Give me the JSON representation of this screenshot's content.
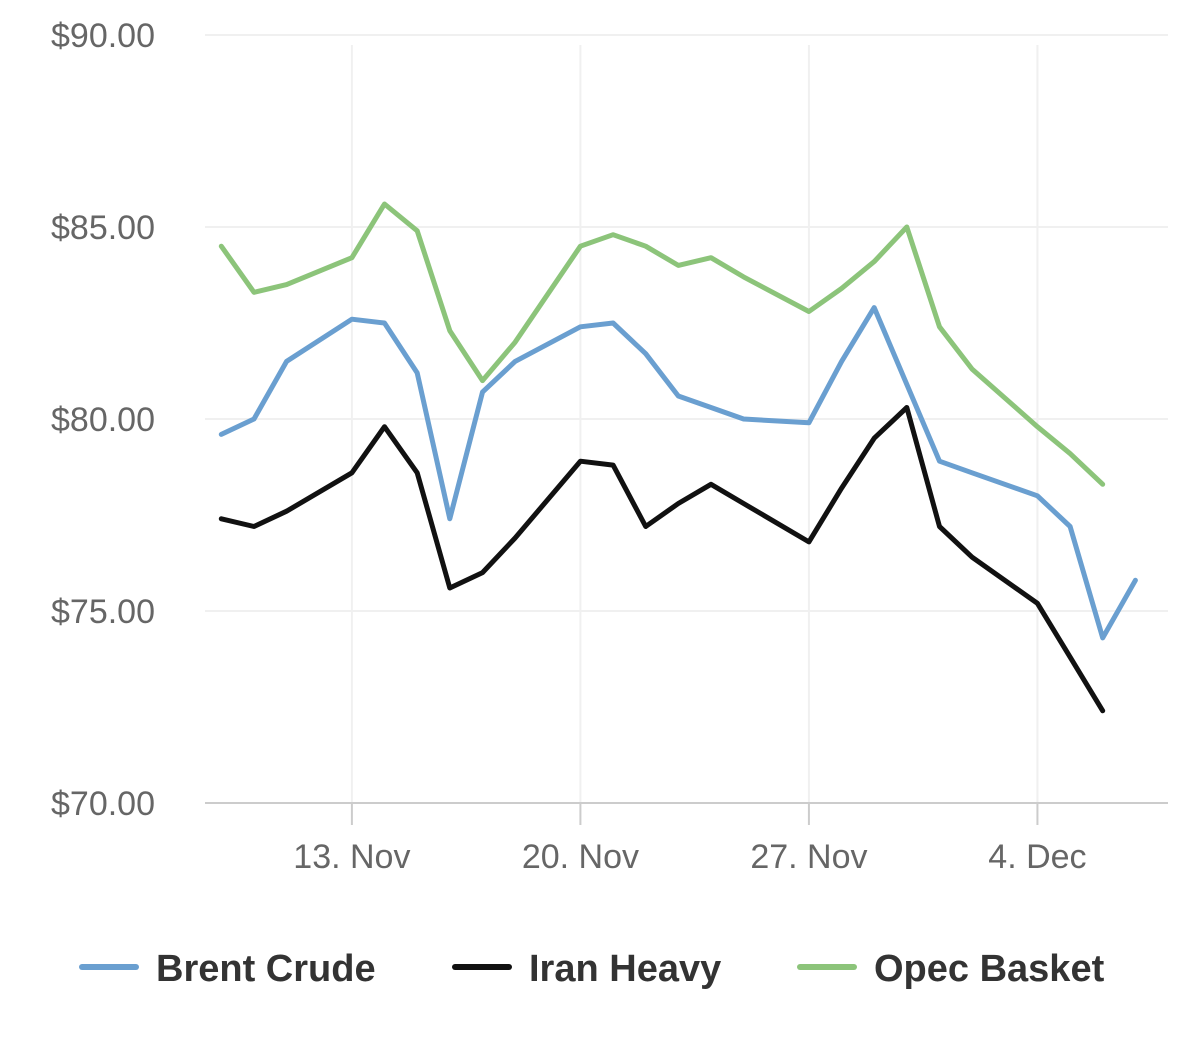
{
  "chart_data": {
    "type": "line",
    "x_type": "date",
    "x": [
      "2017-11-09",
      "2017-11-10",
      "2017-11-11",
      "2017-11-13",
      "2017-11-14",
      "2017-11-15",
      "2017-11-16",
      "2017-11-17",
      "2017-11-18",
      "2017-11-20",
      "2017-11-21",
      "2017-11-22",
      "2017-11-23",
      "2017-11-24",
      "2017-11-25",
      "2017-11-27",
      "2017-11-28",
      "2017-11-29",
      "2017-11-30",
      "2017-12-01",
      "2017-12-02",
      "2017-12-04",
      "2017-12-05",
      "2017-12-06",
      "2017-12-07"
    ],
    "x_ticks": [
      "2017-11-13",
      "2017-11-20",
      "2017-11-27",
      "2017-12-04"
    ],
    "x_tick_labels": [
      "13. Nov",
      "20. Nov",
      "27. Nov",
      "4. Dec"
    ],
    "ylim": [
      70,
      90
    ],
    "y_ticks": [
      70,
      75,
      80,
      85,
      90
    ],
    "y_tick_labels": [
      "$70.00",
      "$75.00",
      "$80.00",
      "$85.00",
      "$90.00"
    ],
    "grid": true,
    "legend_position": "bottom",
    "series": [
      {
        "name": "Brent Crude",
        "color": "#6a9fd0",
        "values": [
          79.6,
          80.0,
          81.5,
          82.6,
          82.5,
          81.2,
          77.4,
          80.7,
          81.5,
          82.4,
          82.5,
          81.7,
          80.6,
          80.3,
          80.0,
          79.9,
          81.5,
          82.9,
          80.9,
          78.9,
          78.6,
          78.0,
          77.2,
          74.3,
          75.8
        ]
      },
      {
        "name": "Iran Heavy",
        "color": "#111111",
        "values": [
          77.4,
          77.2,
          77.6,
          78.6,
          79.8,
          78.6,
          75.6,
          76.0,
          76.9,
          78.9,
          78.8,
          77.2,
          77.8,
          78.3,
          77.8,
          76.8,
          78.2,
          79.5,
          80.3,
          77.2,
          76.4,
          75.2,
          73.8,
          72.4,
          null
        ]
      },
      {
        "name": "Opec Basket",
        "color": "#8cc47a",
        "values": [
          84.5,
          83.3,
          83.5,
          84.2,
          85.6,
          84.9,
          82.3,
          81.0,
          82.0,
          84.5,
          84.8,
          84.5,
          84.0,
          84.2,
          83.7,
          82.8,
          83.4,
          84.1,
          85.0,
          82.4,
          81.3,
          79.8,
          79.1,
          78.3,
          null
        ]
      }
    ]
  }
}
